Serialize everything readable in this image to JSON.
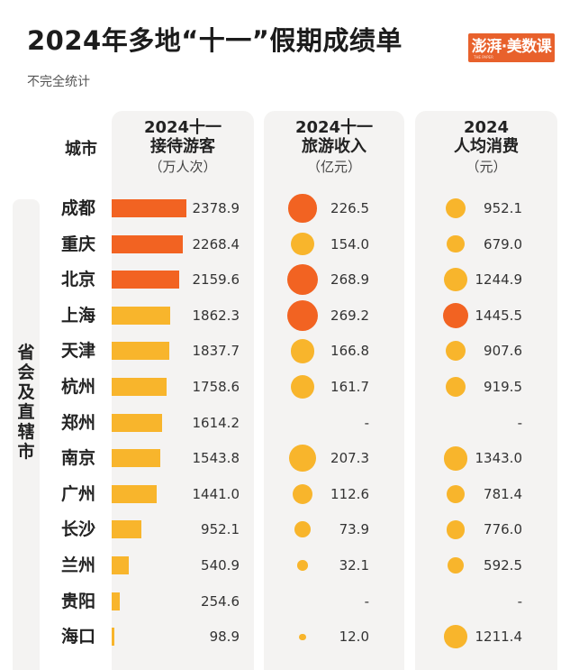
{
  "header": {
    "title": "2024年多地“十一”假期成绩单",
    "subtitle": "不完全统计",
    "logo_text": "澎湃·美数课",
    "logo_sub": "THE PAPER"
  },
  "side_label": "省会及直辖市",
  "columns": {
    "city": "城市",
    "visitors": {
      "line1": "2024十一",
      "line2": "接待游客",
      "unit": "（万人次）"
    },
    "income": {
      "line1": "2024十一",
      "line2": "旅游收入",
      "unit": "（亿元）"
    },
    "spend": {
      "line1": "2024",
      "line2": "人均消费",
      "unit": "（元）"
    }
  },
  "chart_data": {
    "type": "table",
    "colors": {
      "high": "#f26322",
      "normal": "#f8b52c",
      "panel": "#f4f3f2"
    },
    "rows": [
      {
        "city": "成都",
        "visitors": 2378.9,
        "visitors_label": "2378.9",
        "income": 226.5,
        "income_label": "226.5",
        "spend": 952.1,
        "spend_label": "952.1",
        "visitors_top": true,
        "income_top": true,
        "spend_top": false
      },
      {
        "city": "重庆",
        "visitors": 2268.4,
        "visitors_label": "2268.4",
        "income": 154.0,
        "income_label": "154.0",
        "spend": 679.0,
        "spend_label": "679.0",
        "visitors_top": true,
        "income_top": false,
        "spend_top": false
      },
      {
        "city": "北京",
        "visitors": 2159.6,
        "visitors_label": "2159.6",
        "income": 268.9,
        "income_label": "268.9",
        "spend": 1244.9,
        "spend_label": "1244.9",
        "visitors_top": true,
        "income_top": true,
        "spend_top": false
      },
      {
        "city": "上海",
        "visitors": 1862.3,
        "visitors_label": "1862.3",
        "income": 269.2,
        "income_label": "269.2",
        "spend": 1445.5,
        "spend_label": "1445.5",
        "visitors_top": false,
        "income_top": true,
        "spend_top": true
      },
      {
        "city": "天津",
        "visitors": 1837.7,
        "visitors_label": "1837.7",
        "income": 166.8,
        "income_label": "166.8",
        "spend": 907.6,
        "spend_label": "907.6",
        "visitors_top": false,
        "income_top": false,
        "spend_top": false
      },
      {
        "city": "杭州",
        "visitors": 1758.6,
        "visitors_label": "1758.6",
        "income": 161.7,
        "income_label": "161.7",
        "spend": 919.5,
        "spend_label": "919.5",
        "visitors_top": false,
        "income_top": false,
        "spend_top": false
      },
      {
        "city": "郑州",
        "visitors": 1614.2,
        "visitors_label": "1614.2",
        "income": null,
        "income_label": "-",
        "spend": null,
        "spend_label": "-",
        "visitors_top": false,
        "income_top": false,
        "spend_top": false
      },
      {
        "city": "南京",
        "visitors": 1543.8,
        "visitors_label": "1543.8",
        "income": 207.3,
        "income_label": "207.3",
        "spend": 1343.0,
        "spend_label": "1343.0",
        "visitors_top": false,
        "income_top": false,
        "spend_top": false
      },
      {
        "city": "广州",
        "visitors": 1441.0,
        "visitors_label": "1441.0",
        "income": 112.6,
        "income_label": "112.6",
        "spend": 781.4,
        "spend_label": "781.4",
        "visitors_top": false,
        "income_top": false,
        "spend_top": false
      },
      {
        "city": "长沙",
        "visitors": 952.1,
        "visitors_label": "952.1",
        "income": 73.9,
        "income_label": "73.9",
        "spend": 776.0,
        "spend_label": "776.0",
        "visitors_top": false,
        "income_top": false,
        "spend_top": false
      },
      {
        "city": "兰州",
        "visitors": 540.9,
        "visitors_label": "540.9",
        "income": 32.1,
        "income_label": "32.1",
        "spend": 592.5,
        "spend_label": "592.5",
        "visitors_top": false,
        "income_top": false,
        "spend_top": false
      },
      {
        "city": "贵阳",
        "visitors": 254.6,
        "visitors_label": "254.6",
        "income": null,
        "income_label": "-",
        "spend": null,
        "spend_label": "-",
        "visitors_top": false,
        "income_top": false,
        "spend_top": false
      },
      {
        "city": "海口",
        "visitors": 98.9,
        "visitors_label": "98.9",
        "income": 12.0,
        "income_label": "12.0",
        "spend": 1211.4,
        "spend_label": "1211.4",
        "visitors_top": false,
        "income_top": false,
        "spend_top": false
      }
    ]
  }
}
